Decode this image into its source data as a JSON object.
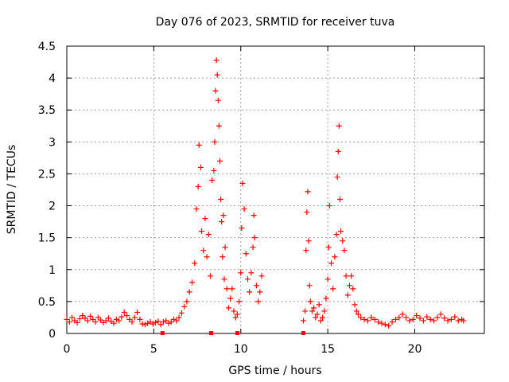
{
  "chart_data": {
    "type": "scatter",
    "title": "Day 076 of 2023, SRMTID for receiver tuva",
    "xlabel": "GPS time / hours",
    "ylabel": "SRMTID / TECUs",
    "xlim": [
      0,
      24
    ],
    "ylim": [
      0,
      4.5
    ],
    "x_ticks": [
      0,
      5,
      10,
      15,
      20
    ],
    "y_ticks": [
      0,
      0.5,
      1,
      1.5,
      2,
      2.5,
      3,
      3.5,
      4,
      4.5
    ],
    "x_tick_labels": [
      "0",
      "5",
      "10",
      "15",
      "20"
    ],
    "y_tick_labels": [
      "0",
      "0.5",
      "1",
      "1.5",
      "2",
      "2.5",
      "3",
      "3.5",
      "4",
      "4.5"
    ],
    "grid": true,
    "marker": "+",
    "series_color": "#ff0000",
    "series": [
      {
        "name": "SRMTID",
        "points": [
          [
            0.0,
            0.22
          ],
          [
            0.15,
            0.18
          ],
          [
            0.3,
            0.25
          ],
          [
            0.45,
            0.2
          ],
          [
            0.6,
            0.17
          ],
          [
            0.75,
            0.23
          ],
          [
            0.9,
            0.28
          ],
          [
            1.05,
            0.24
          ],
          [
            1.2,
            0.2
          ],
          [
            1.35,
            0.27
          ],
          [
            1.5,
            0.22
          ],
          [
            1.65,
            0.18
          ],
          [
            1.8,
            0.25
          ],
          [
            1.95,
            0.21
          ],
          [
            2.1,
            0.17
          ],
          [
            2.25,
            0.2
          ],
          [
            2.4,
            0.24
          ],
          [
            2.55,
            0.19
          ],
          [
            2.7,
            0.16
          ],
          [
            2.85,
            0.22
          ],
          [
            3.0,
            0.2
          ],
          [
            3.15,
            0.26
          ],
          [
            3.3,
            0.33
          ],
          [
            3.45,
            0.28
          ],
          [
            3.6,
            0.22
          ],
          [
            3.75,
            0.18
          ],
          [
            3.9,
            0.25
          ],
          [
            4.05,
            0.33
          ],
          [
            4.2,
            0.22
          ],
          [
            4.35,
            0.15
          ],
          [
            4.5,
            0.14
          ],
          [
            4.65,
            0.16
          ],
          [
            4.8,
            0.18
          ],
          [
            4.95,
            0.15
          ],
          [
            5.1,
            0.17
          ],
          [
            5.25,
            0.19
          ],
          [
            5.4,
            0.14
          ],
          [
            5.55,
            0.18
          ],
          [
            5.7,
            0.2
          ],
          [
            5.85,
            0.16
          ],
          [
            6.0,
            0.18
          ],
          [
            6.15,
            0.22
          ],
          [
            6.3,
            0.2
          ],
          [
            6.45,
            0.25
          ],
          [
            6.6,
            0.32
          ],
          [
            6.75,
            0.42
          ],
          [
            6.9,
            0.5
          ],
          [
            7.05,
            0.65
          ],
          [
            7.2,
            0.8
          ],
          [
            7.35,
            1.1
          ],
          [
            7.45,
            1.95
          ],
          [
            7.55,
            2.3
          ],
          [
            7.6,
            2.95
          ],
          [
            7.7,
            2.6
          ],
          [
            7.75,
            1.6
          ],
          [
            7.85,
            1.3
          ],
          [
            7.95,
            1.8
          ],
          [
            8.05,
            1.2
          ],
          [
            8.15,
            1.55
          ],
          [
            8.25,
            0.9
          ],
          [
            8.35,
            2.4
          ],
          [
            8.45,
            2.55
          ],
          [
            8.5,
            3.0
          ],
          [
            8.55,
            3.8
          ],
          [
            8.6,
            4.28
          ],
          [
            8.65,
            4.05
          ],
          [
            8.7,
            3.65
          ],
          [
            8.75,
            3.25
          ],
          [
            8.8,
            2.7
          ],
          [
            8.85,
            2.1
          ],
          [
            8.9,
            1.75
          ],
          [
            8.95,
            1.2
          ],
          [
            9.0,
            1.85
          ],
          [
            9.05,
            0.85
          ],
          [
            9.1,
            1.35
          ],
          [
            9.2,
            0.7
          ],
          [
            9.3,
            0.4
          ],
          [
            9.4,
            0.55
          ],
          [
            9.5,
            0.7
          ],
          [
            9.6,
            0.35
          ],
          [
            9.7,
            0.25
          ],
          [
            9.8,
            0.3
          ],
          [
            9.9,
            0.5
          ],
          [
            10.0,
            0.95
          ],
          [
            10.05,
            1.65
          ],
          [
            10.1,
            2.35
          ],
          [
            10.2,
            1.95
          ],
          [
            10.3,
            1.25
          ],
          [
            10.4,
            0.85
          ],
          [
            10.5,
            0.65
          ],
          [
            10.6,
            0.95
          ],
          [
            10.7,
            1.35
          ],
          [
            10.75,
            1.85
          ],
          [
            10.8,
            1.5
          ],
          [
            10.9,
            0.75
          ],
          [
            11.0,
            0.5
          ],
          [
            11.1,
            0.65
          ],
          [
            11.2,
            0.9
          ],
          [
            13.6,
            0.2
          ],
          [
            13.7,
            0.35
          ],
          [
            13.75,
            1.3
          ],
          [
            13.8,
            1.9
          ],
          [
            13.85,
            2.22
          ],
          [
            13.9,
            1.45
          ],
          [
            13.95,
            0.75
          ],
          [
            14.0,
            0.5
          ],
          [
            14.1,
            0.35
          ],
          [
            14.2,
            0.4
          ],
          [
            14.3,
            0.25
          ],
          [
            14.4,
            0.3
          ],
          [
            14.5,
            0.45
          ],
          [
            14.6,
            0.2
          ],
          [
            14.7,
            0.25
          ],
          [
            14.8,
            0.35
          ],
          [
            14.9,
            0.55
          ],
          [
            15.0,
            0.85
          ],
          [
            15.05,
            1.35
          ],
          [
            15.1,
            2.0
          ],
          [
            15.2,
            1.1
          ],
          [
            15.3,
            0.7
          ],
          [
            15.4,
            1.2
          ],
          [
            15.5,
            1.55
          ],
          [
            15.55,
            2.45
          ],
          [
            15.6,
            2.85
          ],
          [
            15.65,
            3.25
          ],
          [
            15.7,
            2.1
          ],
          [
            15.75,
            1.6
          ],
          [
            15.85,
            1.45
          ],
          [
            15.95,
            1.3
          ],
          [
            16.05,
            0.9
          ],
          [
            16.15,
            0.6
          ],
          [
            16.25,
            0.75
          ],
          [
            16.35,
            0.9
          ],
          [
            16.45,
            0.7
          ],
          [
            16.55,
            0.45
          ],
          [
            16.65,
            0.35
          ],
          [
            16.75,
            0.3
          ],
          [
            16.9,
            0.25
          ],
          [
            17.1,
            0.22
          ],
          [
            17.3,
            0.2
          ],
          [
            17.5,
            0.25
          ],
          [
            17.7,
            0.22
          ],
          [
            17.9,
            0.18
          ],
          [
            18.1,
            0.16
          ],
          [
            18.3,
            0.14
          ],
          [
            18.5,
            0.12
          ],
          [
            18.7,
            0.18
          ],
          [
            18.9,
            0.22
          ],
          [
            19.1,
            0.25
          ],
          [
            19.3,
            0.3
          ],
          [
            19.5,
            0.25
          ],
          [
            19.7,
            0.2
          ],
          [
            19.9,
            0.22
          ],
          [
            20.1,
            0.28
          ],
          [
            20.3,
            0.24
          ],
          [
            20.5,
            0.2
          ],
          [
            20.7,
            0.26
          ],
          [
            20.9,
            0.22
          ],
          [
            21.1,
            0.2
          ],
          [
            21.3,
            0.25
          ],
          [
            21.5,
            0.3
          ],
          [
            21.7,
            0.24
          ],
          [
            21.9,
            0.2
          ],
          [
            22.1,
            0.22
          ],
          [
            22.3,
            0.26
          ],
          [
            22.5,
            0.2
          ],
          [
            22.7,
            0.22
          ],
          [
            22.8,
            0.2
          ]
        ]
      }
    ],
    "zero_markers": [
      5.5,
      8.3,
      9.8,
      13.6
    ]
  }
}
